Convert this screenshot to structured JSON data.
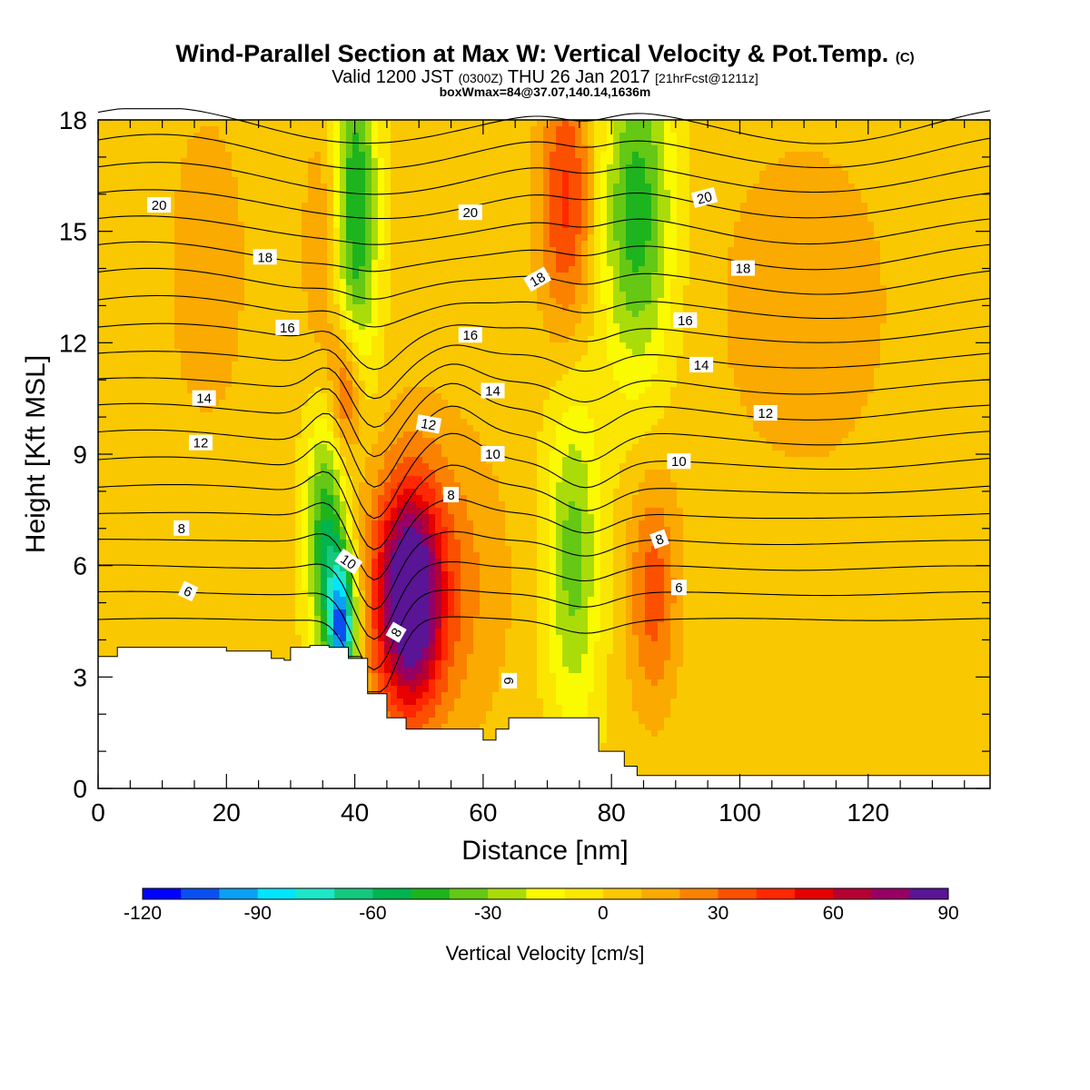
{
  "title": {
    "main": "Wind-Parallel Section at Max W: Vertical Velocity & Pot.Temp.",
    "main_badge": "(C)",
    "valid_pre": "Valid 1200 JST",
    "valid_utc": "(0300Z)",
    "valid_post": "THU 26 Jan 2017",
    "forecast": "[21hrFcst@1211z]",
    "box_info": "boxWmax=84@37.07,140.14,1636m"
  },
  "colors": {
    "terrain": "#ffffff",
    "frame": "#000000",
    "colorbar": [
      "#0000ff",
      "#0a50f0",
      "#0aa0f5",
      "#00e6ff",
      "#1ee6c8",
      "#14c87d",
      "#00b450",
      "#1eb41e",
      "#64c814",
      "#aadc0a",
      "#fafa00",
      "#fae600",
      "#fac800",
      "#faaa00",
      "#fa8200",
      "#fa5000",
      "#ff2800",
      "#e60000",
      "#b40032",
      "#960064",
      "#5a1496"
    ]
  },
  "chart_data": {
    "type": "heatmap",
    "xlabel": "Distance [nm]",
    "ylabel": "Height [Kft MSL]",
    "xlim": [
      0,
      139
    ],
    "ylim": [
      0,
      18
    ],
    "xticks": [
      "0",
      "20",
      "40",
      "60",
      "80",
      "100",
      "120"
    ],
    "yticks": [
      "0",
      "3",
      "6",
      "9",
      "12",
      "15",
      "18"
    ],
    "grid": false,
    "colorbar": {
      "label": "Vertical Velocity [cm/s]",
      "levels": [
        -120,
        -110,
        -100,
        -90,
        -80,
        -70,
        -60,
        -50,
        -40,
        -30,
        -20,
        -10,
        0,
        10,
        20,
        30,
        40,
        50,
        60,
        70,
        80,
        90
      ],
      "tick_labels": [
        "-120",
        "-90",
        "-60",
        "-30",
        "0",
        "30",
        "60",
        "90"
      ],
      "tick_values": [
        -120,
        -90,
        -60,
        -30,
        0,
        30,
        60,
        90
      ],
      "placement": "bottom"
    },
    "vertical_velocity_features": [
      {
        "sign": "downdraft",
        "x": 38,
        "y": 4.3,
        "peak": -100,
        "sx": 1.6,
        "sy": 1.4
      },
      {
        "sign": "downdraft",
        "x": 35.5,
        "y": 6.8,
        "peak": -55,
        "sx": 2.2,
        "sy": 2.3
      },
      {
        "sign": "downdraft",
        "x": 40,
        "y": 15.5,
        "peak": -55,
        "sx": 2.5,
        "sy": 3.3
      },
      {
        "sign": "downdraft",
        "x": 74,
        "y": 6.2,
        "peak": -38,
        "sx": 3,
        "sy": 3.2
      },
      {
        "sign": "downdraft",
        "x": 84,
        "y": 15.5,
        "peak": -50,
        "sx": 4,
        "sy": 3.2
      },
      {
        "sign": "updraft",
        "x": 48.5,
        "y": 5.1,
        "peak": 84,
        "sx": 3.4,
        "sy": 2.0
      },
      {
        "sign": "updraft",
        "x": 51,
        "y": 5.5,
        "peak": 28,
        "sx": 8,
        "sy": 3
      },
      {
        "sign": "updraft",
        "x": 38.5,
        "y": 10.7,
        "peak": 38,
        "sx": 1.8,
        "sy": 1.3
      },
      {
        "sign": "updraft",
        "x": 35.5,
        "y": 14.5,
        "peak": 20,
        "sx": 2.5,
        "sy": 2.5
      },
      {
        "sign": "updraft",
        "x": 73,
        "y": 15.8,
        "peak": 40,
        "sx": 3,
        "sy": 2.6
      },
      {
        "sign": "updraft",
        "x": 86.5,
        "y": 5.3,
        "peak": 32,
        "sx": 2.8,
        "sy": 2.2
      },
      {
        "sign": "updraft",
        "x": 17,
        "y": 14,
        "peak": 13,
        "sx": 5,
        "sy": 3.5
      },
      {
        "sign": "updraft",
        "x": 110,
        "y": 13,
        "peak": 12,
        "sx": 12,
        "sy": 4
      }
    ],
    "terrain_height_kft": {
      "x": [
        0,
        3,
        3,
        20,
        20,
        27,
        27,
        29,
        29,
        30,
        30,
        33,
        33,
        36,
        36,
        39,
        39,
        42,
        42,
        45,
        45,
        48,
        48,
        60,
        60,
        62,
        62,
        64,
        64,
        78,
        78,
        82,
        82,
        84,
        84,
        139
      ],
      "y": [
        3.55,
        3.55,
        3.8,
        3.8,
        3.7,
        3.7,
        3.5,
        3.5,
        3.45,
        3.45,
        3.8,
        3.8,
        3.85,
        3.85,
        3.8,
        3.8,
        3.5,
        3.5,
        2.55,
        2.55,
        1.9,
        1.9,
        1.6,
        1.6,
        1.3,
        1.3,
        1.6,
        1.6,
        1.9,
        1.9,
        1.0,
        1.0,
        0.6,
        0.6,
        0.35,
        0.35
      ]
    },
    "potential_temperature_contours": {
      "label_values": [
        6,
        8,
        10,
        12,
        14,
        16,
        18,
        20
      ],
      "labels": [
        {
          "text": "6",
          "x": 14,
          "y": 5.3,
          "angle": 25
        },
        {
          "text": "6",
          "x": 64,
          "y": 2.9,
          "angle": 90
        },
        {
          "text": "6",
          "x": 90.5,
          "y": 5.4,
          "angle": 0
        },
        {
          "text": "8",
          "x": 13,
          "y": 7.0,
          "angle": 0
        },
        {
          "text": "8",
          "x": 46.5,
          "y": 4.2,
          "angle": -60
        },
        {
          "text": "8",
          "x": 55,
          "y": 7.9,
          "angle": 0
        },
        {
          "text": "8",
          "x": 87.5,
          "y": 6.7,
          "angle": -20
        },
        {
          "text": "10",
          "x": 39,
          "y": 6.1,
          "angle": 35
        },
        {
          "text": "10",
          "x": 61.5,
          "y": 9.0,
          "angle": 0
        },
        {
          "text": "10",
          "x": 90.5,
          "y": 8.8,
          "angle": 0
        },
        {
          "text": "12",
          "x": 16,
          "y": 9.3,
          "angle": 0
        },
        {
          "text": "12",
          "x": 51.5,
          "y": 9.8,
          "angle": 10
        },
        {
          "text": "12",
          "x": 104,
          "y": 10.1,
          "angle": 0
        },
        {
          "text": "14",
          "x": 16.5,
          "y": 10.5,
          "angle": 0
        },
        {
          "text": "14",
          "x": 61.5,
          "y": 10.7,
          "angle": 0
        },
        {
          "text": "14",
          "x": 94,
          "y": 11.4,
          "angle": 0
        },
        {
          "text": "16",
          "x": 29.5,
          "y": 12.4,
          "angle": 0
        },
        {
          "text": "16",
          "x": 58,
          "y": 12.2,
          "angle": 0
        },
        {
          "text": "16",
          "x": 91.5,
          "y": 12.6,
          "angle": 0
        },
        {
          "text": "18",
          "x": 26,
          "y": 14.3,
          "angle": 0
        },
        {
          "text": "18",
          "x": 68.5,
          "y": 13.7,
          "angle": -30
        },
        {
          "text": "18",
          "x": 100.5,
          "y": 14.0,
          "angle": 0
        },
        {
          "text": "20",
          "x": 9.5,
          "y": 15.7,
          "angle": 0
        },
        {
          "text": "20",
          "x": 58,
          "y": 15.5,
          "angle": 0
        },
        {
          "text": "20",
          "x": 94.5,
          "y": 15.9,
          "angle": -15
        }
      ]
    }
  }
}
